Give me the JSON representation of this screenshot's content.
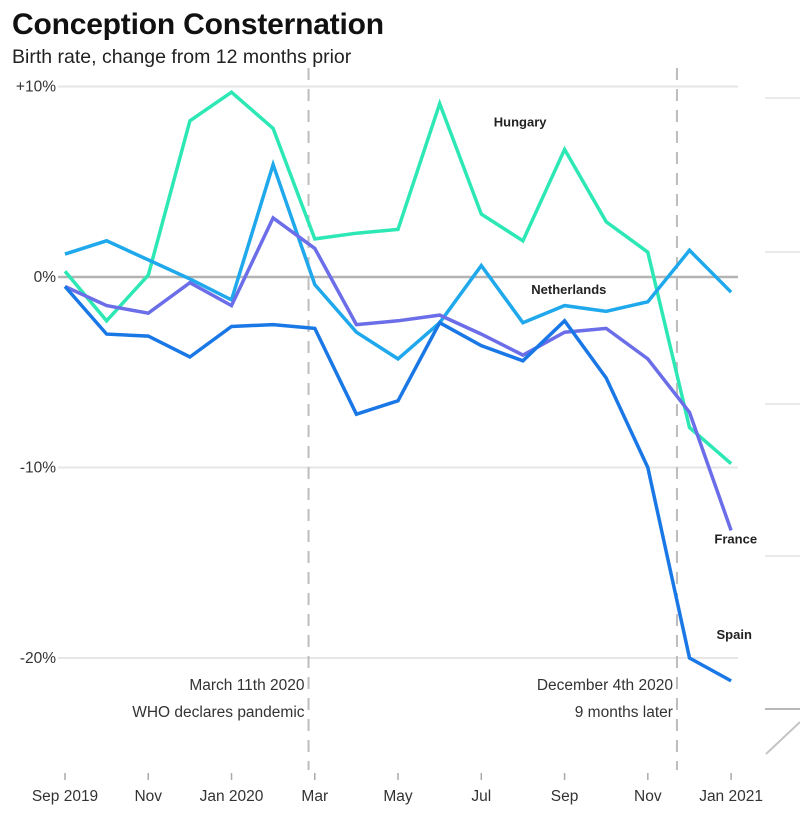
{
  "header": {
    "title": "Conception Consternation",
    "subtitle": "Birth rate, change from 12 months prior"
  },
  "chart_data": {
    "type": "line",
    "title": "Conception Consternation",
    "subtitle": "Birth rate, change from 12 months prior",
    "xlabel": "",
    "ylabel": "",
    "x": [
      "2019-09",
      "2019-10",
      "2019-11",
      "2019-12",
      "2020-01",
      "2020-02",
      "2020-03",
      "2020-04",
      "2020-05",
      "2020-06",
      "2020-07",
      "2020-08",
      "2020-09",
      "2020-10",
      "2020-11",
      "2020-12",
      "2021-01"
    ],
    "x_ticks": [
      {
        "index": 0,
        "label": "Sep 2019"
      },
      {
        "index": 2,
        "label": "Nov"
      },
      {
        "index": 4,
        "label": "Jan 2020"
      },
      {
        "index": 6,
        "label": "Mar"
      },
      {
        "index": 8,
        "label": "May"
      },
      {
        "index": 10,
        "label": "Jul"
      },
      {
        "index": 12,
        "label": "Sep"
      },
      {
        "index": 14,
        "label": "Nov"
      },
      {
        "index": 16,
        "label": "Jan 2021"
      }
    ],
    "ylim": [
      -25.5,
      10.5
    ],
    "y_ticks": [
      {
        "value": 10,
        "label": "+10%"
      },
      {
        "value": 0,
        "label": "0%"
      },
      {
        "value": -10,
        "label": "-10%"
      },
      {
        "value": -20,
        "label": "-20%"
      }
    ],
    "grid": true,
    "legend": "direct-labels",
    "series": [
      {
        "name": "Hungary",
        "color": "#2de8b5",
        "values": [
          0.3,
          -2.3,
          0.1,
          8.2,
          9.7,
          7.8,
          2.0,
          2.3,
          2.5,
          9.1,
          3.3,
          1.9,
          6.7,
          2.9,
          1.3,
          -7.9,
          -9.8
        ],
        "label_at": {
          "index": 10.3,
          "value": 7.9
        }
      },
      {
        "name": "Netherlands",
        "color": "#1fa9ec",
        "values": [
          1.2,
          1.9,
          0.9,
          -0.1,
          -1.2,
          5.9,
          -0.4,
          -2.9,
          -4.3,
          -2.4,
          0.6,
          -2.4,
          -1.5,
          -1.8,
          -1.3,
          1.4,
          -0.8
        ],
        "label_at": {
          "index": 11.2,
          "value": -0.9
        }
      },
      {
        "name": "France",
        "color": "#6b6ee8",
        "values": [
          -0.5,
          -1.5,
          -1.9,
          -0.3,
          -1.5,
          3.1,
          1.5,
          -2.5,
          -2.3,
          -2.0,
          -3.0,
          -4.1,
          -2.9,
          -2.7,
          -4.3,
          -7.1,
          -13.3
        ],
        "label_at": {
          "index": 15.6,
          "value": -14.0
        }
      },
      {
        "name": "Spain",
        "color": "#1a78e6",
        "values": [
          -0.5,
          -3.0,
          -3.1,
          -4.2,
          -2.6,
          -2.5,
          -2.7,
          -7.2,
          -6.5,
          -2.4,
          -3.6,
          -4.4,
          -2.3,
          -5.3,
          -10.0,
          -20.0,
          -21.2
        ],
        "label_at": {
          "index": 15.65,
          "value": -19.0
        }
      }
    ],
    "annotations": [
      {
        "date_index": 5.85,
        "lines": [
          "March 11th 2020",
          "WHO declares pandemic"
        ]
      },
      {
        "date_index": 14.7,
        "lines": [
          "December 4th 2020",
          "9 months later"
        ]
      }
    ]
  }
}
